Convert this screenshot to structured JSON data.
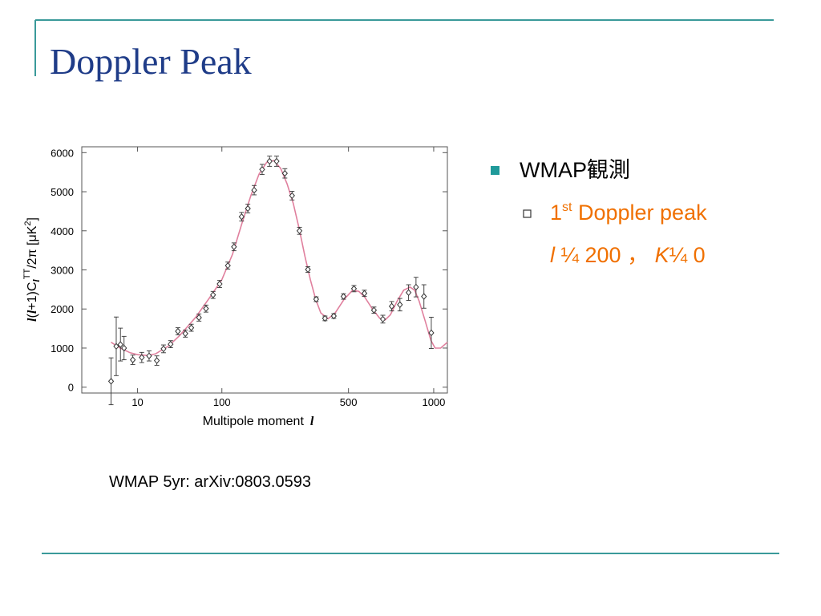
{
  "slide": {
    "title": "Doppler Peak",
    "bullets": [
      {
        "text": "WMAP観測"
      },
      {
        "parts": [
          "1",
          "st",
          " Doppler peak"
        ]
      },
      {
        "parts": [
          "l",
          " ¼ 200 ， ",
          "K",
          "¼ 0"
        ]
      }
    ],
    "caption": "WMAP 5yr: arXiv:0803.0593"
  },
  "chart_data": {
    "type": "scatter",
    "ylabel": [
      "l",
      "(",
      "l",
      "+1)C",
      "l",
      "TT",
      "/2π [μK",
      "2",
      "]"
    ],
    "xlabel": "Multipole moment",
    "xlabel_symbol": "l",
    "xscale": "power",
    "xexponent": 0.4,
    "xlim": [
      0,
      1100
    ],
    "ylim": [
      -150,
      6150
    ],
    "xticks": [
      10,
      100,
      500,
      1000
    ],
    "yticks": [
      0,
      1000,
      2000,
      3000,
      4000,
      5000,
      6000
    ],
    "series": [
      {
        "color": "#333333",
        "x": [
          2,
          3,
          4,
          5,
          8,
          12,
          16,
          21,
          26,
          32,
          39,
          47,
          54,
          64,
          74,
          85,
          96,
          111,
          123,
          139,
          153,
          168,
          188,
          208,
          228,
          253,
          276,
          301,
          331,
          362,
          397,
          434,
          477,
          526,
          578,
          628,
          677,
          728,
          777,
          831,
          879,
          932,
          983
        ],
        "values": [
          150,
          1045,
          1090,
          1000,
          700,
          760,
          800,
          680,
          980,
          1100,
          1430,
          1370,
          1520,
          1780,
          2010,
          2360,
          2640,
          3110,
          3590,
          4360,
          4570,
          5040,
          5570,
          5780,
          5780,
          5470,
          4900,
          4000,
          3010,
          2250,
          1760,
          1820,
          2320,
          2520,
          2400,
          1970,
          1740,
          2070,
          2110,
          2420,
          2560,
          2320,
          1390
        ],
        "errors": [
          600,
          750,
          420,
          300,
          120,
          130,
          130,
          120,
          100,
          90,
          90,
          90,
          90,
          90,
          90,
          90,
          90,
          90,
          100,
          110,
          110,
          120,
          130,
          130,
          130,
          120,
          110,
          90,
          70,
          60,
          60,
          60,
          70,
          80,
          80,
          80,
          100,
          120,
          160,
          200,
          250,
          300,
          400
        ]
      },
      {
        "color": "#e0809e",
        "x": [
          2,
          4,
          7,
          10,
          15,
          20,
          30,
          40,
          50,
          60,
          80,
          100,
          120,
          140,
          160,
          180,
          200,
          220,
          240,
          260,
          280,
          300,
          320,
          340,
          360,
          380,
          410,
          440,
          480,
          520,
          550,
          580,
          620,
          660,
          690,
          720,
          760,
          800,
          840,
          870,
          900,
          940,
          980,
          1010,
          1050,
          1100
        ],
        "values": [
          1150,
          1000,
          880,
          830,
          810,
          850,
          1050,
          1300,
          1560,
          1800,
          2300,
          2750,
          3400,
          4200,
          4900,
          5450,
          5750,
          5800,
          5600,
          5200,
          4700,
          4050,
          3350,
          2750,
          2250,
          1900,
          1750,
          1900,
          2250,
          2480,
          2450,
          2300,
          2000,
          1760,
          1720,
          1850,
          2200,
          2480,
          2560,
          2480,
          2200,
          1700,
          1200,
          1000,
          1000,
          1150
        ]
      }
    ]
  }
}
